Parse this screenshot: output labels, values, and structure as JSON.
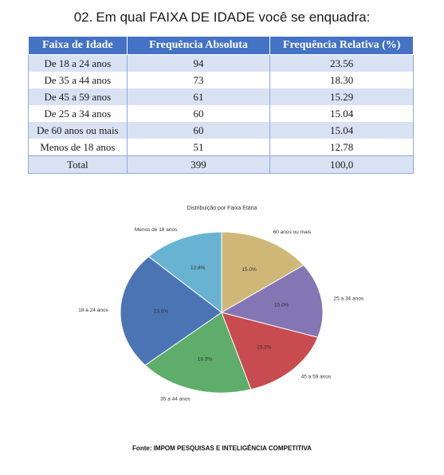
{
  "question": {
    "number": "02.",
    "text": "Em qual FAIXA DE IDADE você se enquadra:"
  },
  "table": {
    "headers": [
      "Faixa de Idade",
      "Frequência Absoluta",
      "Frequência Relativa (%)"
    ],
    "rows": [
      [
        "De 18 a 24 anos",
        "94",
        "23.56"
      ],
      [
        "De 35 a 44 anos",
        "73",
        "18.30"
      ],
      [
        "De 45 a 59 anos",
        "61",
        "15.29"
      ],
      [
        "De 25 a 34 anos",
        "60",
        "15.04"
      ],
      [
        "De 60 anos ou mais",
        "60",
        "15.04"
      ],
      [
        "Menos de 18 anos",
        "51",
        "12.78"
      ]
    ],
    "total": [
      "Total",
      "399",
      "100,0"
    ]
  },
  "chart_data": {
    "type": "pie",
    "title": "Distribuição por Faixa Etária",
    "slices": [
      {
        "label": "Menos de 18 anos",
        "value": 12.8,
        "pct_label": "12.8%",
        "color": "#67b3d1"
      },
      {
        "label": "18 a 24 anos",
        "value": 23.6,
        "pct_label": "23.6%",
        "color": "#4b74b4"
      },
      {
        "label": "35 a 44 anos",
        "value": 18.3,
        "pct_label": "18.3%",
        "color": "#5fad6a"
      },
      {
        "label": "45 a 59 anos",
        "value": 15.3,
        "pct_label": "15.3%",
        "color": "#c84b50"
      },
      {
        "label": "25 a 34 anos",
        "value": 15.0,
        "pct_label": "15.0%",
        "color": "#8475b4"
      },
      {
        "label": "60 anos ou mais",
        "value": 15.0,
        "pct_label": "15.0%",
        "color": "#cfb877"
      }
    ]
  },
  "source": "Fonte: IMPOM PESQUISAS E INTELIGÊNCIA COMPETITIVA"
}
